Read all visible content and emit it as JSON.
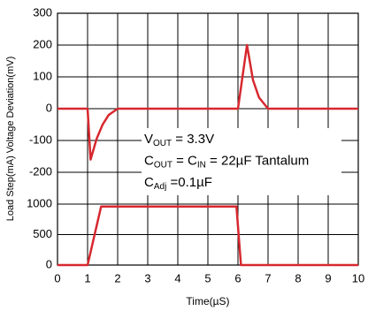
{
  "chart_data": [
    {
      "type": "line",
      "ylabel": "Load Step(mA) Voltage Deviation(mV)",
      "x": [
        0,
        1,
        1.1,
        1.3,
        1.5,
        1.7,
        2,
        6,
        6.3,
        6.5,
        6.7,
        7,
        10
      ],
      "series": [
        {
          "color": "#d7282f",
          "values": [
            0,
            0,
            -160,
            -95,
            -50,
            -20,
            0,
            0,
            200,
            90,
            35,
            0,
            0
          ]
        }
      ],
      "ylim": [
        -300,
        300
      ],
      "yticks": [
        300,
        200,
        100,
        0,
        -100,
        -200
      ],
      "grid": true,
      "annotations": [
        [
          "V",
          "OUT",
          " = 3.3V"
        ],
        [
          "C",
          "OUT",
          " = C",
          "IN",
          " = 22µF Tantalum"
        ],
        [
          "C",
          "Adj",
          " =0.1µF"
        ]
      ]
    },
    {
      "type": "line",
      "xlabel": "Time(µS)",
      "x": [
        0,
        1,
        1.45,
        5.95,
        6.1,
        10
      ],
      "series": [
        {
          "color": "#d7282f",
          "values": [
            0,
            0,
            960,
            960,
            0,
            0
          ]
        }
      ],
      "xlim": [
        0,
        10
      ],
      "xticks": [
        0,
        1,
        2,
        3,
        4,
        5,
        6,
        7,
        8,
        9,
        10
      ],
      "ylim": [
        0,
        1000
      ],
      "yticks": [
        1000,
        500,
        0
      ],
      "grid": true
    }
  ]
}
